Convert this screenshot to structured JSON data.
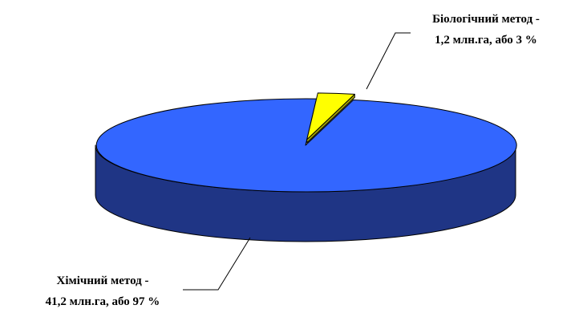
{
  "colors": {
    "chemical_top": "#3366FF",
    "chemical_side": "#1F3585",
    "biological_top": "#FFFF00",
    "biological_side": "#A6A600",
    "outline": "#000000",
    "leader": "#000000"
  },
  "chart_data": {
    "type": "pie",
    "style": "3d",
    "slices": [
      {
        "label_line1": "Біологічний метод -",
        "label_line2": "1,2 млн.га, або 3 %",
        "value": 1.2,
        "percent": 3,
        "exploded": true
      },
      {
        "label_line1": "Хімічний метод -",
        "label_line2": "41,2 млн.га, або 97 %",
        "value": 41.2,
        "percent": 97,
        "exploded": false
      }
    ]
  }
}
